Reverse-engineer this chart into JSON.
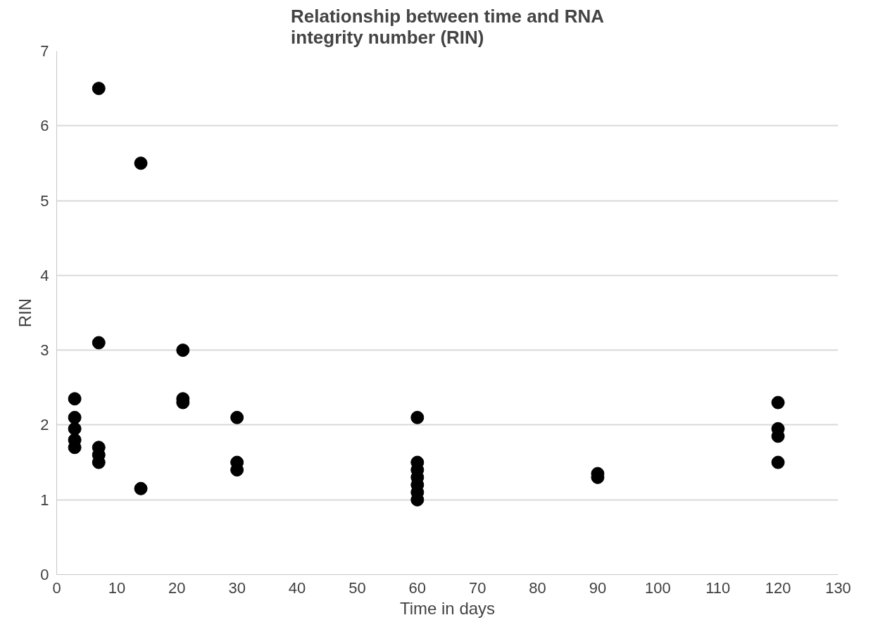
{
  "chart_data": {
    "type": "scatter",
    "title": "Relationship between time and RNA integrity number (RIN)",
    "xlabel": "Time in days",
    "ylabel": "RIN",
    "x": [
      3,
      3,
      3,
      3,
      3,
      7,
      7,
      7,
      7,
      7,
      14,
      14,
      21,
      21,
      21,
      30,
      30,
      30,
      60,
      60,
      60,
      60,
      60,
      60,
      60,
      90,
      90,
      120,
      120,
      120,
      120
    ],
    "series": [
      {
        "color": "#000000",
        "values": [
          2.35,
          2.1,
          1.95,
          1.8,
          1.7,
          6.5,
          3.1,
          1.7,
          1.6,
          1.5,
          5.5,
          1.15,
          3.0,
          2.35,
          2.3,
          2.1,
          1.5,
          1.4,
          2.1,
          1.5,
          1.4,
          1.3,
          1.2,
          1.1,
          1.0,
          1.35,
          1.3,
          2.3,
          1.95,
          1.85,
          1.5
        ]
      }
    ],
    "xlim": [
      0,
      130
    ],
    "xticks": [
      0,
      10,
      20,
      30,
      40,
      50,
      60,
      70,
      80,
      90,
      100,
      110,
      120,
      130
    ],
    "ylim": [
      0,
      7
    ],
    "yticks": [
      0,
      1,
      2,
      3,
      4,
      5,
      6,
      7
    ],
    "grid": "y",
    "marker": "circle"
  }
}
